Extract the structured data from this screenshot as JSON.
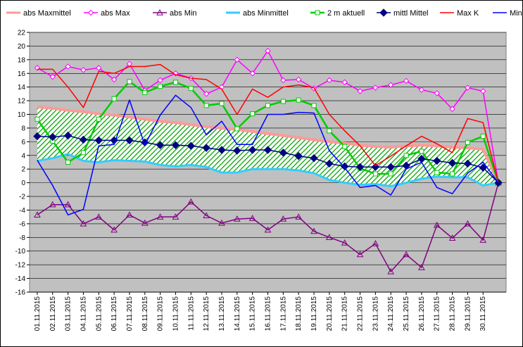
{
  "chart_data": {
    "type": "line",
    "title": "",
    "xlabel": "",
    "ylabel": "",
    "ylim": [
      -16,
      22
    ],
    "ystep": 2,
    "grid": "horizontal",
    "legend_placement": "top",
    "plot_background": "#c0c0c0",
    "x_tick_labels": [
      "01.11.2015",
      "02.11.2015",
      "03.11.2015",
      "04.11.2015",
      "05.11.2015",
      "06.11.2015",
      "07.11.2015",
      "08.11.2015",
      "09.11.2015",
      "10.11.2015",
      "11.11.2015",
      "12.11.2015",
      "13.11.2015",
      "14.11.2015",
      "15.11.2015",
      "16.11.2015",
      "17.11.2015",
      "18.11.2015",
      "19.11.2015",
      "20.11.2015",
      "21.11.2015",
      "22.11.2015",
      "23.11.2015",
      "24.11.2015",
      "25.11.2015",
      "26.11.2015",
      "27.11.2015",
      "28.11.2015",
      "29.11.2015",
      "30.11.2015"
    ],
    "x": [
      1,
      2,
      3,
      4,
      5,
      6,
      7,
      8,
      9,
      10,
      11,
      12,
      13,
      14,
      15,
      16,
      17,
      18,
      19,
      20,
      21,
      22,
      23,
      24,
      25,
      26,
      27,
      28,
      29,
      30,
      31
    ],
    "series": [
      {
        "name": "abs Maxmittel",
        "color": "#ff9999",
        "marker": "none",
        "width": 4,
        "values": [
          11.1,
          10.9,
          10.6,
          10.4,
          10.1,
          9.9,
          9.6,
          9.3,
          9.0,
          8.8,
          8.5,
          8.2,
          8.0,
          7.8,
          7.5,
          7.2,
          6.9,
          6.6,
          6.3,
          6.0,
          5.8,
          5.5,
          5.3,
          5.2,
          5.4,
          5.5,
          5.4,
          5.2,
          5.1,
          4.9,
          0.1
        ]
      },
      {
        "name": "abs Max",
        "color": "#ff00ff",
        "marker": "diamond-open",
        "width": 1.5,
        "values": [
          16.8,
          15.5,
          17.0,
          16.5,
          16.8,
          15.1,
          17.4,
          13.5,
          15.0,
          16.0,
          15.3,
          13.0,
          14.0,
          18.0,
          16.0,
          19.3,
          15.0,
          15.1,
          13.8,
          15.0,
          14.7,
          13.4,
          13.9,
          14.3,
          14.9,
          13.6,
          13.1,
          10.8,
          13.9,
          13.4,
          0.0
        ]
      },
      {
        "name": "abs Min",
        "color": "#800080",
        "marker": "triangle-open",
        "width": 1.5,
        "values": [
          -4.7,
          -3.2,
          -3.2,
          -6.0,
          -5.0,
          -6.9,
          -4.7,
          -5.9,
          -5.0,
          -5.0,
          -2.8,
          -4.8,
          -5.9,
          -5.3,
          -5.2,
          -6.9,
          -5.3,
          -5.0,
          -7.1,
          -8.0,
          -8.8,
          -10.5,
          -8.9,
          -13.0,
          -10.5,
          -12.4,
          -6.2,
          -8.1,
          -6.0,
          -8.4,
          0.0
        ]
      },
      {
        "name": "abs Minmittel",
        "color": "#33ccff",
        "marker": "none",
        "width": 3,
        "values": [
          3.2,
          3.6,
          4.2,
          3.2,
          3.0,
          3.3,
          3.2,
          3.1,
          2.6,
          2.4,
          2.6,
          2.3,
          1.5,
          1.5,
          2.0,
          2.0,
          2.0,
          1.8,
          1.4,
          0.4,
          0.0,
          -0.3,
          -0.2,
          -0.5,
          0.0,
          0.6,
          0.9,
          0.8,
          0.8,
          -0.4,
          0.0
        ]
      },
      {
        "name": "2 m aktuell",
        "color": "#00cc00",
        "marker": "square-open",
        "width": 2.5,
        "values": [
          9.3,
          6.1,
          3.0,
          4.4,
          9.3,
          12.3,
          14.8,
          13.2,
          14.1,
          14.7,
          13.8,
          11.3,
          11.6,
          7.9,
          10.1,
          11.3,
          11.9,
          12.1,
          11.3,
          7.6,
          5.3,
          2.1,
          1.3,
          1.3,
          4.0,
          4.6,
          1.5,
          1.3,
          5.9,
          6.8,
          0.0
        ]
      },
      {
        "name": "mittl Mittel",
        "color": "#000080",
        "marker": "diamond-filled",
        "width": 1.5,
        "values": [
          6.8,
          6.7,
          6.9,
          6.3,
          6.2,
          6.2,
          6.2,
          5.9,
          5.5,
          5.5,
          5.4,
          5.1,
          4.8,
          4.7,
          4.8,
          4.8,
          4.4,
          3.9,
          3.6,
          2.8,
          2.4,
          2.3,
          2.3,
          2.3,
          2.5,
          3.5,
          3.2,
          2.9,
          2.8,
          2.2,
          0.0
        ]
      },
      {
        "name": "Max K",
        "color": "#ff0000",
        "marker": "none",
        "width": 1.5,
        "values": [
          16.6,
          16.6,
          14.0,
          11.0,
          16.3,
          16.0,
          17.0,
          17.0,
          17.3,
          15.8,
          15.3,
          15.1,
          13.7,
          10.0,
          13.7,
          12.5,
          14.0,
          14.3,
          13.9,
          10.0,
          7.6,
          5.4,
          2.5,
          3.9,
          5.4,
          6.8,
          5.7,
          4.4,
          9.4,
          8.8,
          0.0
        ]
      },
      {
        "name": "Min K",
        "color": "#0000ff",
        "marker": "none",
        "width": 1.5,
        "values": [
          3.3,
          -0.4,
          -4.7,
          -3.9,
          5.4,
          5.6,
          12.1,
          5.5,
          9.9,
          12.8,
          11.0,
          7.0,
          9.0,
          5.6,
          5.6,
          10.0,
          10.0,
          10.3,
          10.2,
          4.7,
          2.2,
          -0.7,
          -0.4,
          -1.8,
          2.0,
          3.0,
          -0.7,
          -1.6,
          1.4,
          3.0,
          0.0
        ]
      }
    ]
  }
}
